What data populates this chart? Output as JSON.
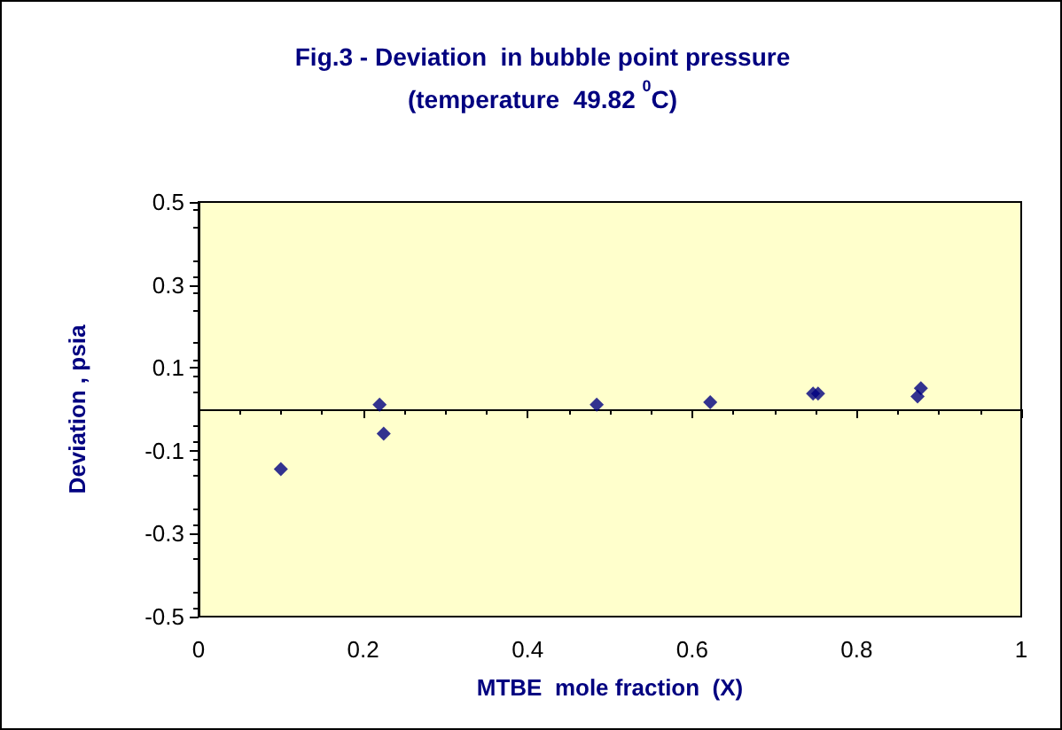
{
  "chart_data": {
    "type": "scatter",
    "title": "Fig.3 - Deviation  in bubble point pressure\n(temperature  49.82 $^{0}$C)",
    "xlabel": "MTBE  mole fraction  (X)",
    "ylabel": "Deviation , psia",
    "series": [
      {
        "color": "#000080",
        "x": [
          0.1,
          0.22,
          0.225,
          0.484,
          0.622,
          0.747,
          0.753,
          0.874,
          0.878
        ],
        "values": [
          -0.144,
          0.011,
          -0.059,
          0.011,
          0.017,
          0.038,
          0.038,
          0.031,
          0.051
        ]
      }
    ],
    "xlim": [
      0,
      1
    ],
    "xticks": [
      0,
      0.2,
      0.4,
      0.6,
      0.8,
      1
    ],
    "ylim": [
      -0.5,
      0.5
    ],
    "yticks": [
      -0.5,
      -0.3,
      -0.1,
      0.1,
      0.3,
      0.5
    ],
    "grid": false,
    "marker": "diamond"
  }
}
